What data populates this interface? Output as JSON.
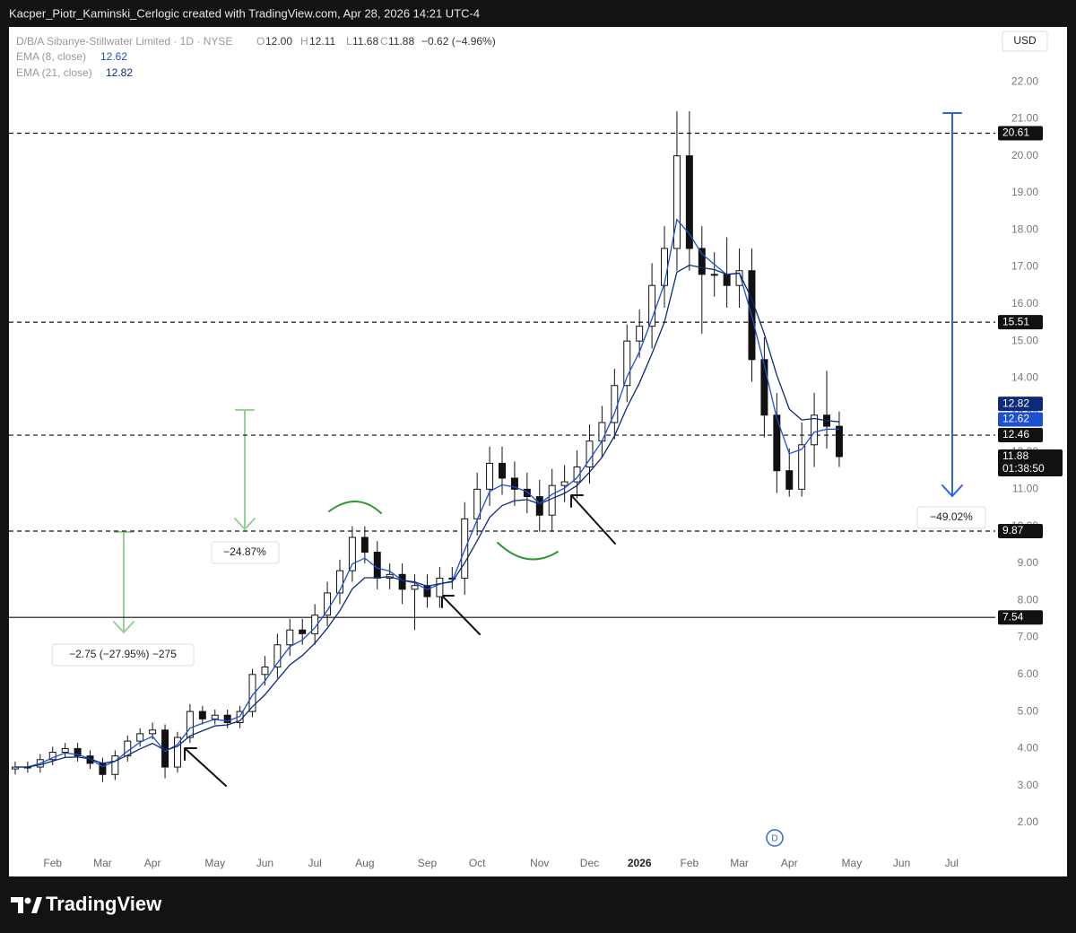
{
  "header": {
    "caption": "Kacper_Piotr_Kaminski_Cerlogic created with TradingView.com, Apr 28, 2026 14:21 UTC-4",
    "brand": "TradingView"
  },
  "chart_data": {
    "type": "candlestick",
    "legend": {
      "symbol": "D/B/A Sibanye-Stillwater Limited · 1D · NYSE",
      "open_label": "O",
      "open": "12.00",
      "high_label": "H",
      "high": "12.11",
      "low_label": "L",
      "low": "11.68",
      "close_label": "C",
      "close": "11.88",
      "change": "−0.62 (−4.96%)"
    },
    "currency": "USD",
    "categories": [
      null,
      null,
      null,
      "Feb",
      null,
      null,
      null,
      "Mar",
      null,
      null,
      null,
      "Apr",
      null,
      null,
      null,
      null,
      "May",
      null,
      null,
      null,
      "Jun",
      null,
      null,
      null,
      "Jul",
      null,
      null,
      null,
      "Aug",
      null,
      null,
      null,
      null,
      "Sep",
      null,
      null,
      null,
      "Oct",
      null,
      null,
      null,
      null,
      "Nov",
      null,
      null,
      null,
      "Dec",
      null,
      null,
      null,
      "2026",
      null,
      null,
      null,
      "Feb",
      null,
      null,
      null,
      "Mar",
      null,
      null,
      null,
      "Apr",
      null,
      null,
      null,
      null,
      "May",
      null,
      null,
      null,
      "Jun",
      null,
      null,
      null,
      "Jul",
      null,
      null,
      null
    ],
    "open": [
      3.45,
      3.5,
      3.5,
      3.7,
      3.9,
      4.0,
      3.8,
      3.6,
      3.3,
      3.8,
      4.2,
      4.4,
      4.5,
      3.5,
      4.3,
      5.0,
      4.8,
      4.9,
      4.7,
      5.0,
      6.0,
      6.2,
      6.8,
      7.2,
      7.1,
      7.6,
      8.2,
      8.8,
      9.7,
      9.3,
      8.6,
      8.7,
      8.3,
      8.4,
      8.1,
      8.6,
      8.6,
      10.2,
      11.0,
      11.7,
      11.3,
      11.0,
      10.8,
      10.3,
      11.1,
      11.2,
      11.6,
      12.3,
      12.8,
      13.8,
      15.0,
      15.4,
      16.5,
      17.5,
      20.0,
      17.5,
      16.8,
      16.8,
      16.5,
      16.9,
      14.5,
      13.0,
      11.5,
      11.0,
      12.2,
      13.0,
      12.7,
      null,
      null,
      null,
      null,
      null,
      null,
      null,
      null,
      null,
      null,
      null,
      null
    ],
    "high": [
      3.65,
      3.65,
      3.85,
      4.05,
      4.15,
      4.15,
      3.95,
      3.75,
      3.95,
      4.35,
      4.55,
      4.7,
      4.65,
      4.45,
      5.2,
      5.15,
      5.05,
      5.05,
      5.15,
      6.15,
      6.5,
      7.1,
      7.5,
      7.5,
      7.9,
      8.5,
      9.1,
      10.0,
      10.0,
      9.6,
      9.0,
      9.0,
      8.7,
      8.7,
      8.9,
      8.9,
      10.65,
      11.45,
      12.15,
      12.15,
      11.75,
      11.45,
      11.25,
      11.55,
      11.65,
      12.05,
      12.75,
      13.25,
      14.25,
      15.45,
      15.85,
      17.1,
      18.1,
      21.2,
      21.2,
      18.1,
      17.4,
      17.8,
      17.5,
      17.5,
      15.1,
      13.6,
      12.1,
      12.8,
      13.6,
      14.2,
      13.1,
      null,
      null,
      null,
      null,
      null,
      null,
      null,
      null,
      null,
      null,
      null,
      null
    ],
    "low": [
      3.3,
      3.35,
      3.35,
      3.55,
      3.75,
      3.65,
      3.45,
      3.1,
      3.15,
      3.65,
      4.05,
      4.25,
      3.2,
      3.35,
      4.15,
      4.65,
      4.65,
      4.55,
      4.55,
      4.85,
      5.7,
      5.9,
      6.5,
      6.8,
      6.8,
      7.3,
      7.9,
      8.5,
      9.0,
      8.3,
      8.3,
      7.9,
      7.2,
      7.8,
      7.8,
      8.3,
      8.15,
      9.75,
      10.55,
      10.85,
      10.55,
      10.35,
      9.85,
      9.85,
      10.65,
      10.75,
      11.15,
      11.85,
      12.35,
      13.35,
      14.55,
      14.8,
      15.9,
      16.9,
      16.9,
      15.2,
      16.2,
      15.9,
      15.9,
      13.9,
      12.4,
      10.9,
      10.8,
      10.8,
      11.6,
      12.1,
      11.6,
      null,
      null,
      null,
      null,
      null,
      null,
      null,
      null,
      null,
      null,
      null,
      null
    ],
    "close": [
      3.5,
      3.5,
      3.7,
      3.9,
      4.0,
      3.8,
      3.6,
      3.3,
      3.8,
      4.2,
      4.4,
      4.5,
      3.5,
      4.3,
      5.0,
      4.8,
      4.9,
      4.7,
      5.0,
      6.0,
      6.2,
      6.8,
      7.2,
      7.1,
      7.6,
      8.2,
      8.8,
      9.7,
      9.3,
      8.6,
      8.7,
      8.3,
      8.4,
      8.1,
      8.6,
      8.6,
      10.2,
      11.0,
      11.7,
      11.3,
      11.0,
      10.8,
      10.3,
      11.1,
      11.2,
      11.6,
      12.3,
      12.8,
      13.8,
      15.0,
      15.4,
      16.5,
      17.5,
      20.0,
      17.5,
      16.8,
      16.8,
      16.5,
      16.9,
      14.5,
      13.0,
      11.5,
      11.0,
      12.2,
      13.0,
      12.7,
      11.88,
      null,
      null,
      null,
      null,
      null,
      null,
      null,
      null,
      null,
      null,
      null,
      null
    ],
    "countdown": "01:38:50",
    "series": [
      {
        "name": "EMA (8, close)",
        "color": "#1e4fd0",
        "values": [
          3.5,
          3.5,
          3.6,
          3.75,
          3.88,
          3.84,
          3.72,
          3.51,
          3.66,
          3.93,
          4.17,
          4.33,
          3.92,
          4.11,
          4.55,
          4.68,
          4.79,
          4.74,
          4.87,
          5.44,
          5.82,
          6.31,
          6.75,
          6.93,
          7.26,
          7.73,
          8.27,
          8.98,
          9.14,
          8.87,
          8.79,
          8.54,
          8.47,
          8.29,
          8.44,
          8.52,
          9.36,
          10.18,
          10.94,
          11.12,
          11.06,
          10.93,
          10.61,
          10.86,
          11.03,
          11.31,
          11.8,
          12.3,
          13.05,
          14.03,
          14.71,
          15.6,
          16.55,
          18.28,
          17.89,
          17.35,
          17.07,
          16.79,
          16.84,
          15.67,
          14.34,
          12.92,
          11.96,
          12.08,
          12.54,
          12.62,
          12.62,
          null,
          null,
          null,
          null,
          null,
          null,
          null,
          null,
          null,
          null,
          null,
          null
        ]
      },
      {
        "name": "EMA (21, close)",
        "color": "#0c2a78",
        "values": [
          3.5,
          3.5,
          3.56,
          3.66,
          3.76,
          3.77,
          3.72,
          3.6,
          3.66,
          3.82,
          3.99,
          4.14,
          3.95,
          4.06,
          4.34,
          4.48,
          4.61,
          4.64,
          4.75,
          5.13,
          5.45,
          5.86,
          6.26,
          6.51,
          6.84,
          7.25,
          7.72,
          8.31,
          8.61,
          8.61,
          8.64,
          8.54,
          8.5,
          8.38,
          8.45,
          8.5,
          9.01,
          9.61,
          10.24,
          10.56,
          10.69,
          10.72,
          10.6,
          10.75,
          10.89,
          11.1,
          11.46,
          11.86,
          12.44,
          13.21,
          13.87,
          14.66,
          15.51,
          16.86,
          17.05,
          16.98,
          16.93,
          16.8,
          16.83,
          16.13,
          15.19,
          14.08,
          13.16,
          12.87,
          12.91,
          12.85,
          12.82,
          null,
          null,
          null,
          null,
          null,
          null,
          null,
          null,
          null,
          null,
          null,
          null
        ]
      }
    ],
    "levels": [
      {
        "value": 20.61,
        "style": "dashed"
      },
      {
        "value": 15.51,
        "style": "dashed"
      },
      {
        "value": 12.46,
        "style": "dashed"
      },
      {
        "value": 9.87,
        "style": "dashed"
      },
      {
        "value": 7.54,
        "style": "solid"
      }
    ],
    "measures": [
      "−24.87%",
      "−2.75 (−27.95%) −275",
      "−49.02%"
    ],
    "ylim": [
      1.2,
      23.48
    ],
    "yticks": [
      {
        "value": 2,
        "label": "2.00"
      },
      {
        "value": 3,
        "label": "3.00"
      },
      {
        "value": 4,
        "label": "4.00"
      },
      {
        "value": 5,
        "label": "5.00"
      },
      {
        "value": 6,
        "label": "6.00"
      },
      {
        "value": 7,
        "label": "7.00"
      },
      {
        "value": 8,
        "label": "8.00"
      },
      {
        "value": 9,
        "label": "9.00"
      },
      {
        "value": 10,
        "label": "10.00"
      },
      {
        "value": 11,
        "label": "11.00"
      },
      {
        "value": 12,
        "label": "12.00"
      },
      {
        "value": 13,
        "label": "13.00"
      },
      {
        "value": 14,
        "label": "14.00"
      },
      {
        "value": 15,
        "label": "15.00"
      },
      {
        "value": 16,
        "label": "16.00"
      },
      {
        "value": 17,
        "label": "17.00"
      },
      {
        "value": 18,
        "label": "18.00"
      },
      {
        "value": 19,
        "label": "19.00"
      },
      {
        "value": 20,
        "label": "20.00"
      },
      {
        "value": 21,
        "label": "21.00"
      },
      {
        "value": 22,
        "label": "22.00"
      }
    ],
    "grid": false
  }
}
